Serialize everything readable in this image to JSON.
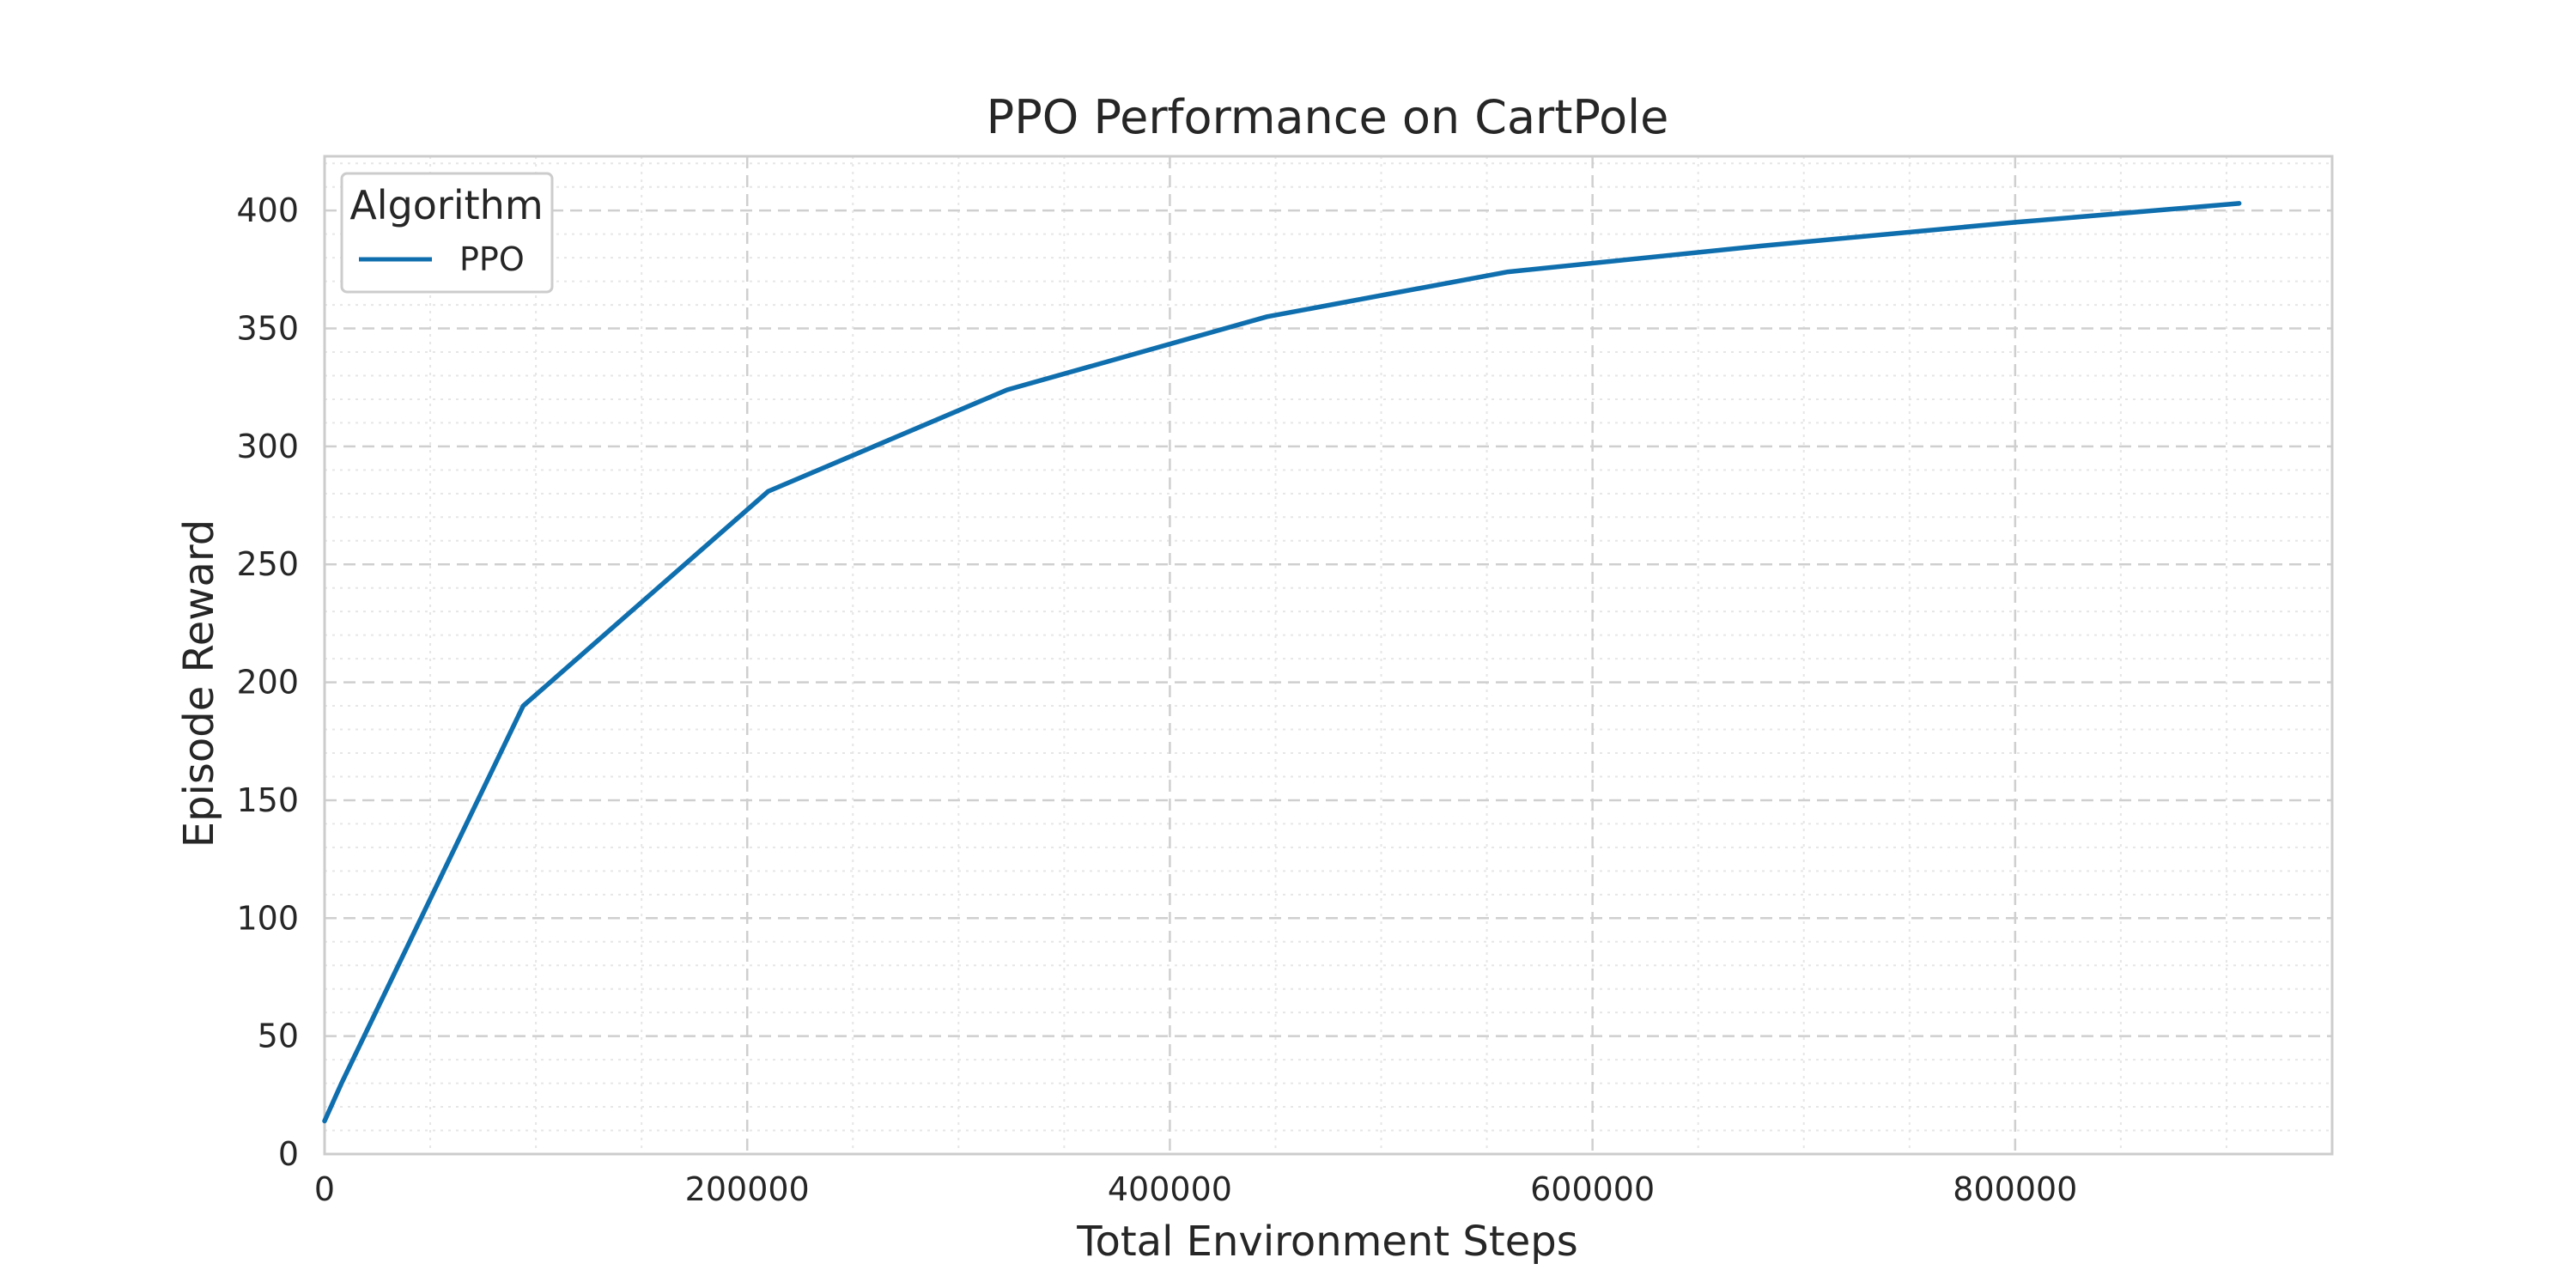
{
  "chart_data": {
    "type": "line",
    "title": "PPO Performance on CartPole",
    "xlabel": "Total Environment Steps",
    "ylabel": "Episode Reward",
    "xlim": [
      0,
      950000
    ],
    "ylim": [
      0,
      423
    ],
    "x_ticks": [
      0,
      200000,
      400000,
      600000,
      800000
    ],
    "x_tick_labels": [
      "0",
      "200000",
      "400000",
      "600000",
      "800000"
    ],
    "y_ticks": [
      0,
      50,
      100,
      150,
      200,
      250,
      300,
      350,
      400
    ],
    "y_tick_labels": [
      "0",
      "50",
      "100",
      "150",
      "200",
      "250",
      "300",
      "350",
      "400"
    ],
    "grid": true,
    "legend": {
      "title": "Algorithm",
      "position": "top-left"
    },
    "series": [
      {
        "name": "PPO",
        "color": "#0f6fae",
        "x": [
          0,
          8000,
          94000,
          210000,
          323000,
          446000,
          560000,
          680000,
          800000,
          906000
        ],
        "y": [
          14,
          30,
          190,
          281,
          324,
          355,
          374,
          385,
          395,
          403
        ]
      }
    ]
  }
}
